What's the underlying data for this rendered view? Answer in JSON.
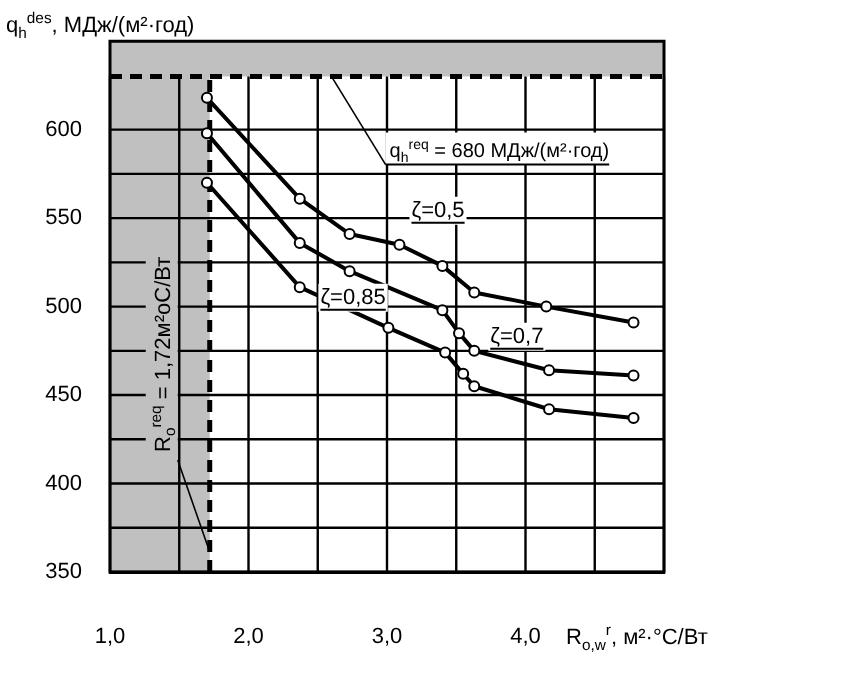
{
  "chart_data": {
    "type": "line",
    "ylabel": "q$_{h}$$^{des}$, МДж/(м²·год)",
    "xlabel": "R$_{o,w}$$^{r}$, м²·°C/Вт",
    "xlim": [
      1.0,
      5.0
    ],
    "xticks": [
      {
        "value": 1.0,
        "label": "1,0"
      },
      {
        "value": 1.5,
        "label": null
      },
      {
        "value": 2.0,
        "label": "2,0"
      },
      {
        "value": 2.5,
        "label": null
      },
      {
        "value": 3.0,
        "label": "3,0"
      },
      {
        "value": 3.5,
        "label": null
      },
      {
        "value": 4.0,
        "label": "4,0"
      },
      {
        "value": 4.5,
        "label": null
      },
      {
        "value": 5.0,
        "label": null
      }
    ],
    "ylim": [
      350,
      650
    ],
    "yticks": [
      350,
      {
        "value": 375,
        "label": null
      },
      400,
      {
        "value": 425,
        "label": null
      },
      450,
      {
        "value": 475,
        "label": null
      },
      500,
      {
        "value": 525,
        "label": null
      },
      550,
      {
        "value": 575,
        "label": null
      },
      600
    ],
    "grid": true,
    "marker": "circle",
    "series": [
      {
        "name": "ζ=0,5",
        "color": "#000000",
        "x": [
          1.7,
          2.37,
          2.73,
          3.09,
          3.4,
          3.63,
          4.15,
          4.78
        ],
        "values": [
          618,
          561,
          541,
          535,
          523,
          508,
          500,
          491
        ]
      },
      {
        "name": "ζ=0,7",
        "color": "#000000",
        "x": [
          1.7,
          2.37,
          2.73,
          3.4,
          3.52,
          3.63,
          4.17,
          4.78
        ],
        "values": [
          598,
          536,
          520,
          498,
          485,
          475,
          464,
          461
        ]
      },
      {
        "name": "ζ=0,85",
        "color": "#000000",
        "x": [
          1.7,
          2.37,
          3.01,
          3.42,
          3.55,
          3.63,
          4.17,
          4.78
        ],
        "values": [
          570,
          511,
          488,
          474,
          462,
          455,
          442,
          437
        ]
      }
    ],
    "ref_lines": [
      {
        "axis": "x",
        "value": 1.72,
        "label": "R$_{o}$$^{req}$ = 1,72м²оС/Вт",
        "line_style": "dashed"
      },
      {
        "axis": "y",
        "value": 630,
        "line_style": "dashed"
      }
    ],
    "bands": [
      {
        "axis": "x",
        "from": 1.0,
        "to": 1.72,
        "color": "#c0c0c0"
      },
      {
        "axis": "y",
        "from": 630,
        "to": 650,
        "color": "#c0c0c0"
      }
    ],
    "annotations": [
      {
        "text": "q$_{h}$$^{req}$ = 680 МДж/(м²·год)",
        "x": 2.6,
        "y": 630
      }
    ]
  }
}
